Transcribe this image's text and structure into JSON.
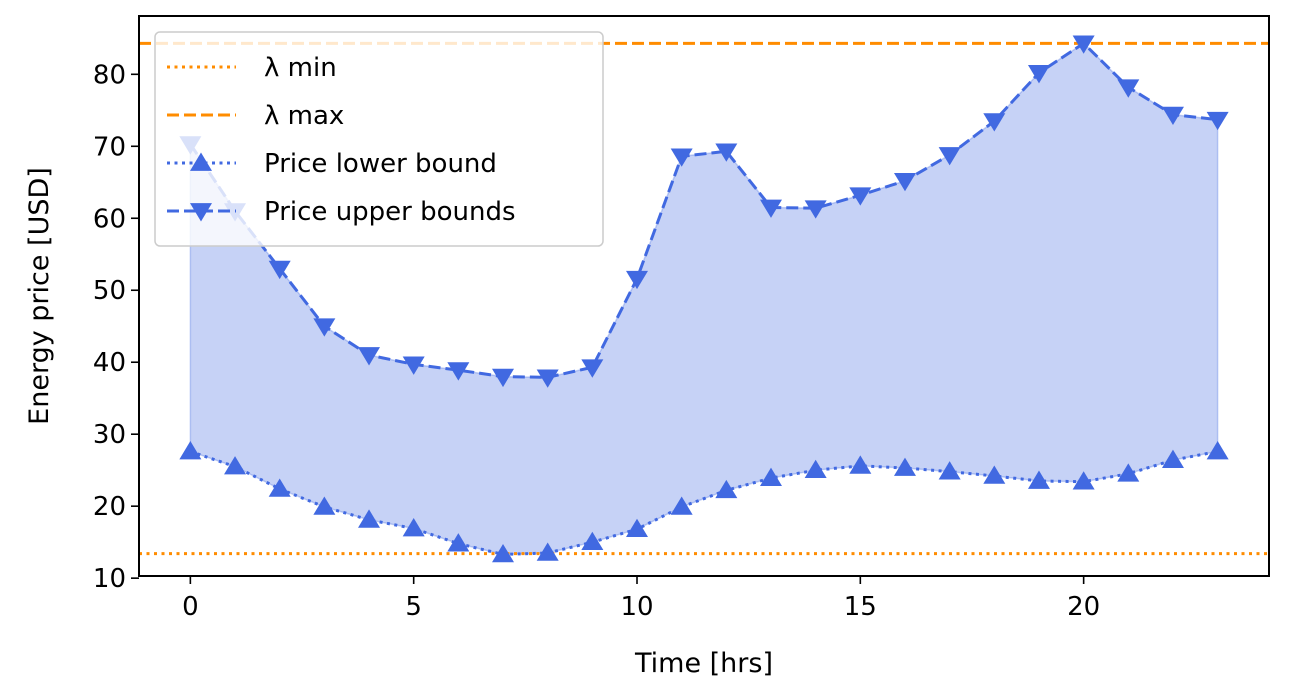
{
  "chart_data": {
    "type": "line",
    "xlabel": "Time [hrs]",
    "ylabel": "Energy price [USD]",
    "xlim": [
      -1.15,
      24.15
    ],
    "ylim": [
      10.3,
      88.1
    ],
    "x_ticks": [
      0,
      5,
      10,
      15,
      20
    ],
    "y_ticks": [
      10,
      20,
      30,
      40,
      50,
      60,
      70,
      80
    ],
    "grid": false,
    "legend_position": "upper-left",
    "fill_between": {
      "lower_series": "Price lower bound",
      "upper_series": "Price upper bounds",
      "color": "#4169e1",
      "alpha": 0.3
    },
    "hlines": [
      {
        "name": "λ min",
        "y": 13.4,
        "style": "dotted",
        "color": "#ff8c00"
      },
      {
        "name": "λ max",
        "y": 84.3,
        "style": "dashed",
        "color": "#ff8c00"
      }
    ],
    "x": [
      0,
      1,
      2,
      3,
      4,
      5,
      6,
      7,
      8,
      9,
      10,
      11,
      12,
      13,
      14,
      15,
      16,
      17,
      18,
      19,
      20,
      21,
      22,
      23
    ],
    "series": [
      {
        "name": "Price lower bound",
        "style": "dotted",
        "marker": "triangle-up",
        "color": "#4169e1",
        "values": [
          27.6,
          25.5,
          22.4,
          19.9,
          18.1,
          16.9,
          14.8,
          13.3,
          13.5,
          15.0,
          16.8,
          19.9,
          22.2,
          23.9,
          25.0,
          25.6,
          25.3,
          24.8,
          24.2,
          23.5,
          23.4,
          24.5,
          26.4,
          27.6
        ]
      },
      {
        "name": "Price upper bounds",
        "style": "dashed",
        "marker": "triangle-down",
        "color": "#4169e1",
        "values": [
          70.3,
          61.0,
          53.0,
          45.0,
          41.0,
          39.7,
          38.9,
          38.0,
          37.9,
          39.3,
          51.6,
          68.6,
          69.3,
          61.5,
          61.4,
          63.2,
          65.2,
          68.8,
          73.5,
          80.2,
          84.3,
          78.2,
          74.4,
          73.7
        ]
      }
    ]
  }
}
